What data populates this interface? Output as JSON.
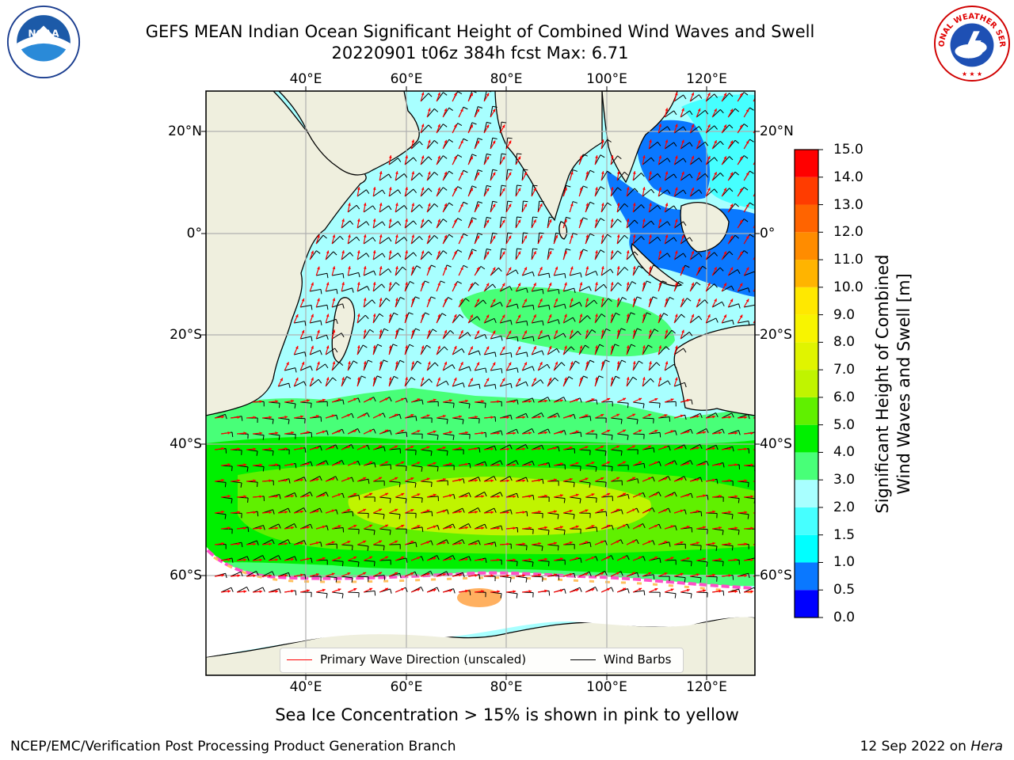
{
  "header": {
    "title_line1": "GEFS MEAN Indian Ocean Significant Height of Combined Wind Waves and Swell",
    "title_line2": "20220901 t06z 384h fcst   Max: 6.71"
  },
  "map": {
    "lon_labels": [
      "40°E",
      "60°E",
      "80°E",
      "100°E",
      "120°E"
    ],
    "lat_labels": [
      "20°N",
      "0°",
      "20°S",
      "40°S",
      "60°S"
    ],
    "colors": {
      "land": "#efefde",
      "ice_free_shelf": "#ffffff",
      "grid": "#b0b0b0",
      "wave_arrow": "#ff0000",
      "wind_barb": "#000000"
    }
  },
  "colorbar": {
    "label_line1": "Significant Height of Combined",
    "label_line2": "Wind Waves and Swell [m]",
    "ticks": [
      "0.0",
      "0.5",
      "1.0",
      "1.5",
      "2.0",
      "3.0",
      "4.0",
      "5.0",
      "6.0",
      "7.0",
      "8.0",
      "9.0",
      "10.0",
      "11.0",
      "12.0",
      "13.0",
      "14.0",
      "15.0"
    ],
    "colors": [
      "#0000ff",
      "#0a78ff",
      "#00ffff",
      "#46ffff",
      "#a8ffff",
      "#48ff78",
      "#00f000",
      "#60f000",
      "#c0f400",
      "#e0f400",
      "#f8f400",
      "#ffe800",
      "#ffb400",
      "#ff8c00",
      "#ff6400",
      "#ff3c00",
      "#ff0000"
    ]
  },
  "legend": {
    "wave_direction": "Primary Wave Direction (unscaled)",
    "wind_barbs": "Wind Barbs"
  },
  "notes": {
    "sea_ice": "Sea Ice Concentration > 15% is shown in pink to yellow"
  },
  "footer": {
    "left": "NCEP/EMC/Verification Post Processing Product Generation Branch",
    "date": "12 Sep 2022 on ",
    "host": "Hera"
  },
  "logos": {
    "noaa_text": "NOAA",
    "nws_text": "NATIONAL WEATHER SERVICE"
  }
}
